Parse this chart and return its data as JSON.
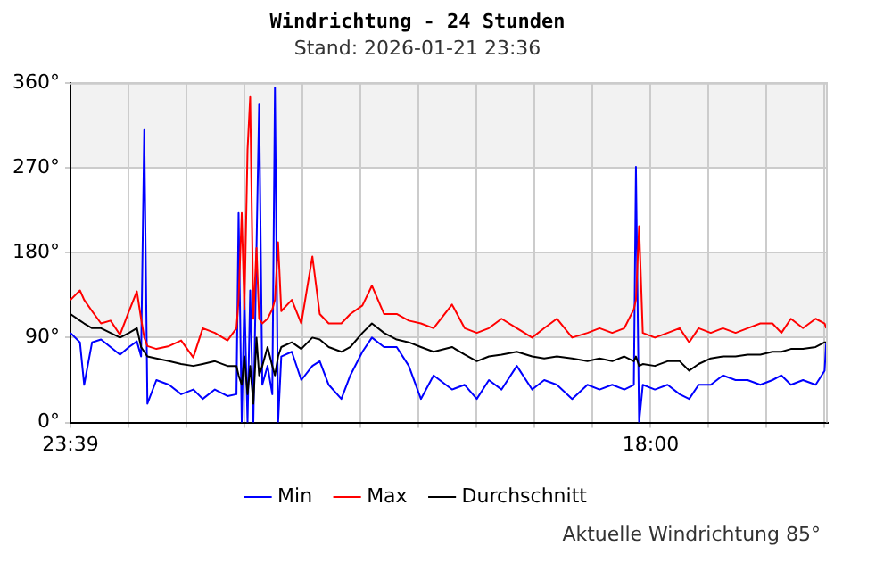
{
  "chart_data": {
    "type": "line",
    "title": "Windrichtung - 24 Stunden",
    "subtitle": "Stand: 2026-01-21 23:36",
    "annotations": [
      "Aktuelle Windrichtung 85°"
    ],
    "x": [
      "2026-01-20T23:39",
      "2026-01-20T23:57",
      "2026-01-21T00:05",
      "2026-01-21T00:20",
      "2026-01-21T00:37",
      "2026-01-21T00:55",
      "2026-01-21T01:13",
      "2026-01-21T01:30",
      "2026-01-21T01:45",
      "2026-01-21T01:53",
      "2026-01-21T01:59",
      "2026-01-21T02:05",
      "2026-01-21T02:22",
      "2026-01-21T02:46",
      "2026-01-21T03:09",
      "2026-01-21T03:32",
      "2026-01-21T03:50",
      "2026-01-21T04:13",
      "2026-01-21T04:37",
      "2026-01-21T04:54",
      "2026-01-21T04:58",
      "2026-01-21T05:04",
      "2026-01-21T05:09",
      "2026-01-21T05:15",
      "2026-01-21T05:20",
      "2026-01-21T05:26",
      "2026-01-21T05:32",
      "2026-01-21T05:37",
      "2026-01-21T05:43",
      "2026-01-21T05:53",
      "2026-01-21T06:02",
      "2026-01-21T06:07",
      "2026-01-21T06:13",
      "2026-01-21T06:19",
      "2026-01-21T06:39",
      "2026-01-21T06:57",
      "2026-01-21T07:18",
      "2026-01-21T07:32",
      "2026-01-21T07:49",
      "2026-01-21T08:13",
      "2026-01-21T08:30",
      "2026-01-21T08:53",
      "2026-01-21T09:11",
      "2026-01-21T09:34",
      "2026-01-21T09:58",
      "2026-01-21T10:21",
      "2026-01-21T10:44",
      "2026-01-21T11:08",
      "2026-01-21T11:43",
      "2026-01-21T12:07",
      "2026-01-21T12:30",
      "2026-01-21T12:53",
      "2026-01-21T13:17",
      "2026-01-21T13:46",
      "2026-01-21T14:15",
      "2026-01-21T14:38",
      "2026-01-21T15:02",
      "2026-01-21T15:31",
      "2026-01-21T16:00",
      "2026-01-21T16:23",
      "2026-01-21T16:47",
      "2026-01-21T17:10",
      "2026-01-21T17:28",
      "2026-01-21T17:32",
      "2026-01-21T17:38",
      "2026-01-21T17:45",
      "2026-01-21T18:08",
      "2026-01-21T18:32",
      "2026-01-21T18:55",
      "2026-01-21T19:13",
      "2026-01-21T19:31",
      "2026-01-21T19:54",
      "2026-01-21T20:17",
      "2026-01-21T20:41",
      "2026-01-21T21:04",
      "2026-01-21T21:28",
      "2026-01-21T21:51",
      "2026-01-21T22:08",
      "2026-01-21T22:26",
      "2026-01-21T22:49",
      "2026-01-21T23:13",
      "2026-01-21T23:30",
      "2026-01-21T23:33"
    ],
    "series": [
      {
        "name": "Min",
        "color": "#0000ff",
        "values": [
          95,
          85,
          40,
          85,
          88,
          80,
          72,
          80,
          86,
          70,
          310,
          20,
          45,
          40,
          30,
          35,
          25,
          35,
          28,
          30,
          222,
          0,
          135,
          0,
          140,
          0,
          185,
          337,
          40,
          60,
          30,
          355,
          0,
          70,
          75,
          45,
          60,
          65,
          40,
          25,
          50,
          75,
          90,
          80,
          80,
          60,
          25,
          50,
          35,
          40,
          25,
          45,
          35,
          60,
          35,
          45,
          40,
          25,
          40,
          35,
          40,
          35,
          40,
          271,
          0,
          40,
          35,
          40,
          30,
          25,
          40,
          40,
          50,
          45,
          45,
          40,
          45,
          50,
          40,
          45,
          40,
          55,
          85
        ]
      },
      {
        "name": "Max",
        "color": "#ff0000",
        "values": [
          130,
          140,
          130,
          118,
          105,
          108,
          93,
          118,
          139,
          110,
          90,
          81,
          78,
          81,
          87,
          69,
          100,
          95,
          87,
          100,
          130,
          222,
          120,
          289,
          345,
          110,
          185,
          110,
          105,
          110,
          120,
          130,
          191,
          118,
          130,
          105,
          176,
          115,
          105,
          105,
          115,
          124,
          145,
          115,
          115,
          108,
          105,
          100,
          125,
          100,
          95,
          100,
          110,
          100,
          90,
          100,
          110,
          90,
          95,
          100,
          95,
          100,
          120,
          130,
          208,
          95,
          90,
          95,
          100,
          85,
          100,
          95,
          100,
          95,
          100,
          105,
          105,
          95,
          110,
          100,
          110,
          105,
          100
        ]
      },
      {
        "name": "Durchschnitt",
        "color": "#000000",
        "values": [
          115,
          108,
          105,
          100,
          100,
          95,
          90,
          95,
          100,
          80,
          75,
          70,
          68,
          65,
          62,
          60,
          62,
          65,
          60,
          60,
          50,
          40,
          70,
          30,
          60,
          20,
          90,
          50,
          60,
          80,
          60,
          50,
          70,
          80,
          85,
          78,
          90,
          88,
          80,
          75,
          80,
          95,
          105,
          95,
          88,
          85,
          80,
          75,
          80,
          72,
          65,
          70,
          72,
          75,
          70,
          68,
          70,
          68,
          65,
          68,
          65,
          70,
          65,
          70,
          60,
          62,
          60,
          65,
          65,
          55,
          62,
          68,
          70,
          70,
          72,
          72,
          75,
          75,
          78,
          78,
          80,
          85,
          85
        ]
      }
    ],
    "xlim": [
      "2026-01-20T23:39",
      "2026-01-21T23:36"
    ],
    "xticks": [
      {
        "value": "2026-01-20T23:39",
        "label": "23:39"
      },
      {
        "value": "2026-01-21T01:29",
        "label": null
      },
      {
        "value": "2026-01-21T03:19",
        "label": null
      },
      {
        "value": "2026-01-21T05:09",
        "label": null
      },
      {
        "value": "2026-01-21T06:59",
        "label": null
      },
      {
        "value": "2026-01-21T08:49",
        "label": null
      },
      {
        "value": "2026-01-21T10:39",
        "label": null
      },
      {
        "value": "2026-01-21T12:29",
        "label": null
      },
      {
        "value": "2026-01-21T14:19",
        "label": null
      },
      {
        "value": "2026-01-21T16:09",
        "label": null
      },
      {
        "value": "2026-01-21T18:00",
        "label": "18:00"
      },
      {
        "value": "2026-01-21T19:50",
        "label": null
      },
      {
        "value": "2026-01-21T21:40",
        "label": null
      },
      {
        "value": "2026-01-21T23:30",
        "label": null
      }
    ],
    "ylim": [
      0,
      360
    ],
    "yticks": [
      {
        "value": 0,
        "label": "0°"
      },
      {
        "value": 90,
        "label": "90°"
      },
      {
        "value": 180,
        "label": "180°"
      },
      {
        "value": 270,
        "label": "270°"
      },
      {
        "value": 360,
        "label": "360°"
      }
    ],
    "bands": [
      {
        "axis": "y",
        "from": 90,
        "to": 180,
        "color": "#f2f2f2"
      },
      {
        "axis": "y",
        "from": 270,
        "to": 360,
        "color": "#f2f2f2"
      }
    ],
    "grid": true,
    "legend": "bottom",
    "marker": "none",
    "line_style": "solid"
  }
}
